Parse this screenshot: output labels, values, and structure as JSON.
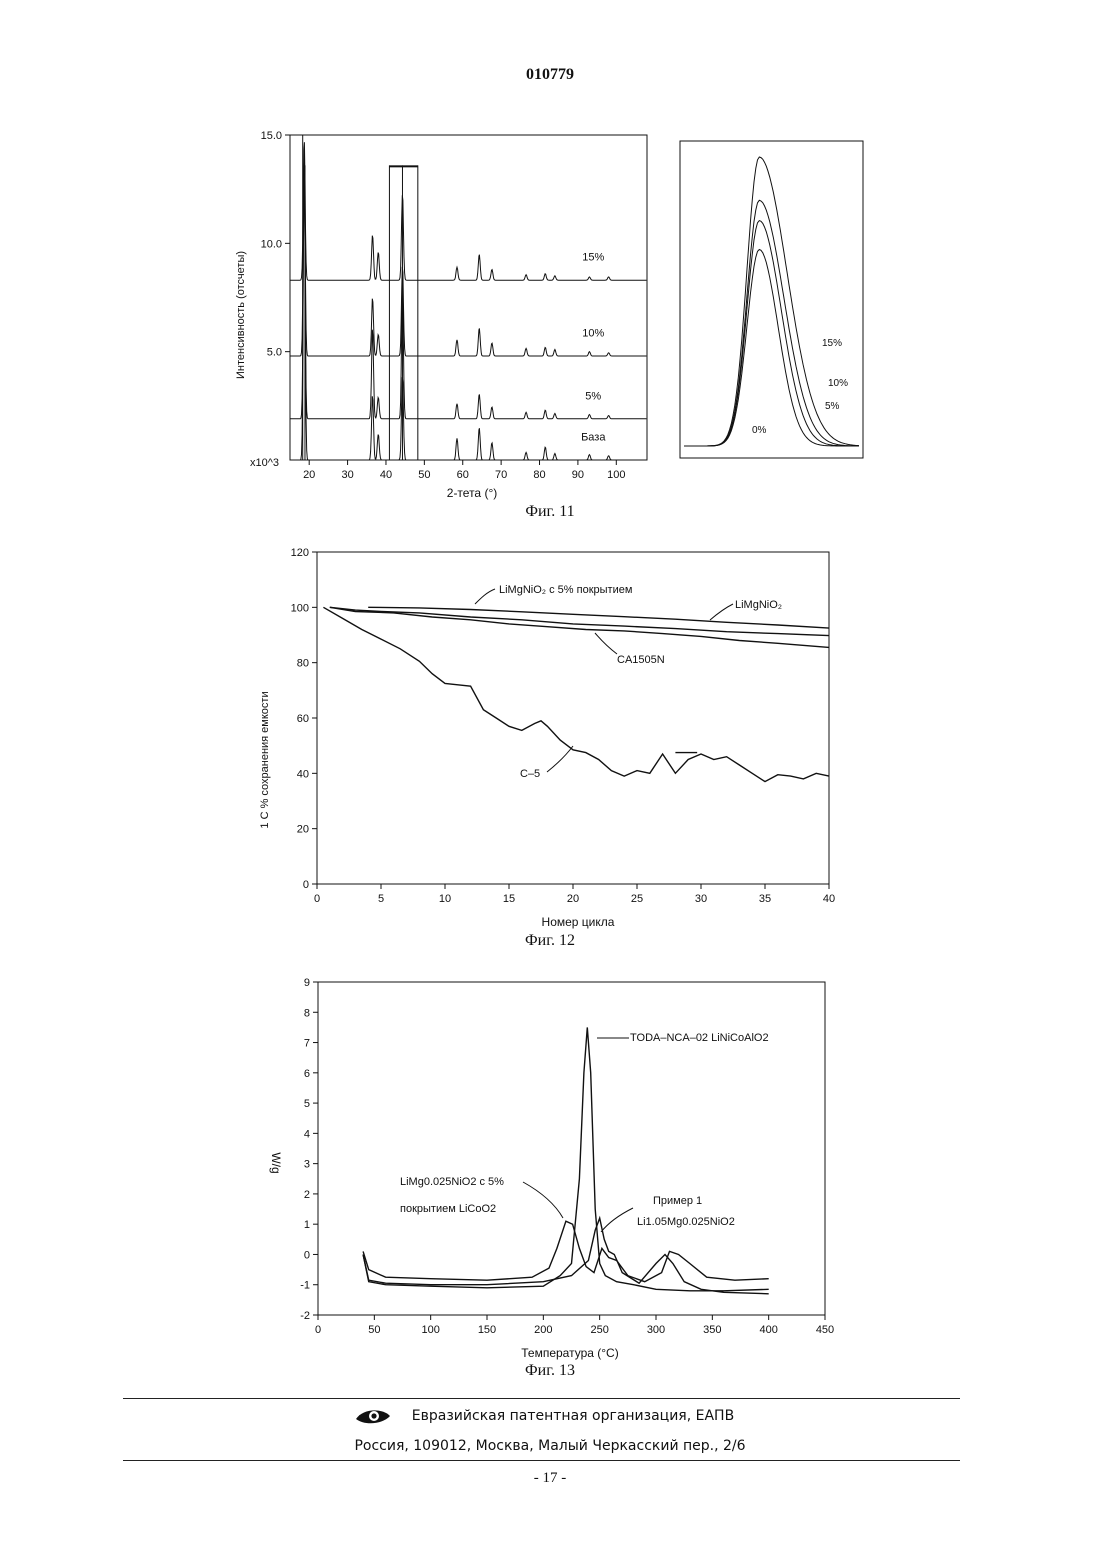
{
  "document": {
    "number": "010779",
    "page_number": "- 17 -"
  },
  "footer": {
    "org": "Евразийская патентная организация, ЕАПВ",
    "address": "Россия, 109012, Москва, Малый Черкасский пер., 2/6"
  },
  "figures": {
    "fig11": {
      "caption": "Фиг. 11",
      "xlabel": "2-тета (°)",
      "ylabel": "Интенсивность (отсчеты)",
      "y_multiplier": "x10^3",
      "series_labels": [
        "15%",
        "10%",
        "5%",
        "База"
      ],
      "inset_labels": [
        "15%",
        "10%",
        "5%",
        "0%"
      ]
    },
    "fig12": {
      "caption": "Фиг. 12",
      "xlabel": "Номер цикла",
      "ylabel": "1 С % сохранения емкости",
      "labels": {
        "coated": "LiMgNiO₂ с 5% покрытием",
        "limgnio2": "LiMgNiO₂",
        "ca1505n": "CA1505N",
        "c5": "C–5"
      }
    },
    "fig13": {
      "caption": "Фиг. 13",
      "xlabel": "Температура (°С)",
      "ylabel": "W/g",
      "labels": {
        "toda": "TODA–NCA–02 LiNiCoAlO2",
        "coated_line1": "LiMg0.025NiO2 с 5%",
        "coated_line2": "покрытием LiCoO2",
        "example_line1": "Пример 1",
        "example_line2": "Li1.05Mg0.025NiO2"
      }
    }
  },
  "chart_data": [
    {
      "type": "line",
      "title": "",
      "xlabel": "2-тета (°)",
      "ylabel": "Интенсивность (отсчеты)",
      "xlim": [
        15,
        108
      ],
      "ylim": [
        0,
        15
      ],
      "x_ticks": [
        20,
        30,
        40,
        50,
        60,
        70,
        80,
        90,
        100
      ],
      "y_ticks": [
        5.0,
        10.0,
        15.0
      ],
      "y_multiplier": "x10^3",
      "series": [
        {
          "name": "15%",
          "baseline": 8.3,
          "peaks": [
            [
              18.7,
              6.5
            ],
            [
              36.5,
              2.1
            ],
            [
              38.0,
              1.3
            ],
            [
              44.3,
              4.0
            ],
            [
              58.5,
              0.6
            ],
            [
              64.3,
              1.2
            ],
            [
              67.6,
              0.5
            ],
            [
              76.5,
              0.25
            ],
            [
              81.5,
              0.3
            ],
            [
              84.0,
              0.2
            ],
            [
              93.0,
              0.15
            ],
            [
              98.0,
              0.15
            ]
          ]
        },
        {
          "name": "10%",
          "baseline": 4.8,
          "peaks": [
            [
              18.7,
              9.5
            ],
            [
              36.5,
              2.7
            ],
            [
              38.0,
              1.0
            ],
            [
              44.3,
              4.2
            ],
            [
              58.5,
              0.75
            ],
            [
              64.3,
              1.3
            ],
            [
              67.6,
              0.6
            ],
            [
              76.5,
              0.35
            ],
            [
              81.5,
              0.4
            ],
            [
              84.0,
              0.3
            ],
            [
              93.0,
              0.2
            ],
            [
              98.0,
              0.15
            ]
          ]
        },
        {
          "name": "5%",
          "baseline": 1.9,
          "peaks": [
            [
              18.7,
              11.0
            ],
            [
              36.5,
              4.2
            ],
            [
              38.0,
              1.0
            ],
            [
              44.3,
              5.8
            ],
            [
              58.5,
              0.7
            ],
            [
              64.3,
              1.15
            ],
            [
              67.6,
              0.55
            ],
            [
              76.5,
              0.3
            ],
            [
              81.5,
              0.4
            ],
            [
              84.0,
              0.25
            ],
            [
              93.0,
              0.2
            ],
            [
              98.0,
              0.15
            ]
          ]
        },
        {
          "name": "База",
          "baseline": 0.0,
          "peaks": [
            [
              18.7,
              14.0
            ],
            [
              36.5,
              3.0
            ],
            [
              38.0,
              1.2
            ],
            [
              44.3,
              3.9
            ],
            [
              58.5,
              1.0
            ],
            [
              64.3,
              1.5
            ],
            [
              67.6,
              0.8
            ],
            [
              76.5,
              0.35
            ],
            [
              81.5,
              0.6
            ],
            [
              84.0,
              0.3
            ],
            [
              93.0,
              0.25
            ],
            [
              98.0,
              0.2
            ]
          ]
        }
      ],
      "inset": {
        "series": [
          {
            "name": "15%",
            "peak": 1.0
          },
          {
            "name": "10%",
            "peak": 0.85
          },
          {
            "name": "5%",
            "peak": 0.78
          },
          {
            "name": "0%",
            "peak": 0.68
          }
        ]
      }
    },
    {
      "type": "line",
      "title": "",
      "xlabel": "Номер цикла",
      "ylabel": "1 С % сохранения емкости",
      "xlim": [
        0,
        40
      ],
      "ylim": [
        0,
        120
      ],
      "x_ticks": [
        0,
        5,
        10,
        15,
        20,
        25,
        30,
        35,
        40
      ],
      "y_ticks": [
        0,
        20,
        40,
        60,
        80,
        100,
        120
      ],
      "series": [
        {
          "name": "LiMgNiO₂ с 5% покрытием",
          "x": [
            4,
            8,
            12,
            16,
            20,
            24,
            28,
            32,
            36,
            40
          ],
          "y": [
            100,
            99.8,
            99.2,
            98.4,
            97.5,
            96.6,
            95.7,
            94.6,
            93.6,
            92.5
          ]
        },
        {
          "name": "LiMgNiO₂",
          "x": [
            1,
            3,
            5,
            8,
            12,
            16,
            20,
            24,
            28,
            32,
            36,
            40
          ],
          "y": [
            100,
            99,
            98.5,
            98,
            96.5,
            95.5,
            94,
            93.2,
            92.3,
            91.2,
            90.5,
            89.8
          ]
        },
        {
          "name": "CA1505N",
          "x": [
            1,
            3,
            6,
            9,
            12,
            15,
            18,
            21,
            24,
            27,
            30,
            33,
            36,
            40
          ],
          "y": [
            100,
            98.5,
            98,
            96.5,
            95.5,
            94,
            93,
            92,
            91.5,
            90.5,
            89.5,
            88,
            87,
            85.5
          ]
        },
        {
          "name": "C–5",
          "x": [
            0.5,
            2,
            3.5,
            5,
            6.5,
            8,
            9,
            10,
            11,
            12,
            13,
            14,
            15,
            16,
            17,
            17.5,
            18,
            19,
            20,
            21,
            22,
            23,
            24,
            25,
            26,
            27,
            28,
            29,
            30,
            31,
            32,
            33,
            34,
            35,
            36,
            37,
            38,
            39,
            40
          ],
          "y": [
            100,
            96,
            92,
            88.5,
            85,
            80.5,
            76,
            72.5,
            72,
            71.5,
            63,
            60,
            57,
            55.5,
            58,
            59,
            57,
            52,
            48.5,
            47.5,
            45,
            41,
            39,
            41,
            40,
            47,
            40,
            45,
            47,
            45,
            46,
            43,
            40,
            37,
            39.5,
            39,
            38,
            40,
            39
          ]
        }
      ]
    },
    {
      "type": "line",
      "title": "",
      "xlabel": "Температура (°С)",
      "ylabel": "W/g",
      "xlim": [
        0,
        450
      ],
      "ylim": [
        -2,
        9
      ],
      "x_ticks": [
        0,
        50,
        100,
        150,
        200,
        250,
        300,
        350,
        400,
        450
      ],
      "y_ticks": [
        -2,
        -1,
        0,
        1,
        2,
        3,
        4,
        5,
        6,
        7,
        8,
        9
      ],
      "series": [
        {
          "name": "TODA–NCA–02 LiNiCoAlO2",
          "x": [
            40,
            45,
            60,
            100,
            150,
            200,
            215,
            225,
            232,
            236,
            239,
            242,
            246,
            250,
            255,
            265,
            280,
            300,
            330,
            360,
            400
          ],
          "y": [
            0.0,
            -0.9,
            -1.0,
            -1.05,
            -1.1,
            -1.05,
            -0.7,
            -0.3,
            2.5,
            6.0,
            7.5,
            6.0,
            1.5,
            -0.3,
            -0.7,
            -0.9,
            -1.0,
            -1.15,
            -1.2,
            -1.2,
            -1.15
          ]
        },
        {
          "name": "LiMg0.025NiO2 с 5% покрытием LiCoO2",
          "x": [
            40,
            45,
            60,
            100,
            150,
            190,
            205,
            212,
            220,
            226,
            232,
            238,
            245,
            252,
            258,
            265,
            275,
            290,
            305,
            312,
            320,
            330,
            345,
            370,
            400
          ],
          "y": [
            0.1,
            -0.5,
            -0.75,
            -0.8,
            -0.85,
            -0.75,
            -0.45,
            0.2,
            1.1,
            1.0,
            0.2,
            -0.4,
            -0.6,
            0.2,
            -0.1,
            -0.2,
            -0.7,
            -0.9,
            -0.6,
            0.1,
            0.0,
            -0.3,
            -0.75,
            -0.85,
            -0.8
          ]
        },
        {
          "name": "Пример 1 Li1.05Mg0.025NiO2",
          "x": [
            40,
            45,
            60,
            100,
            150,
            200,
            225,
            240,
            246,
            250,
            254,
            258,
            263,
            270,
            285,
            300,
            308,
            315,
            325,
            340,
            360,
            400
          ],
          "y": [
            0.0,
            -0.85,
            -0.95,
            -1.0,
            -1.0,
            -0.9,
            -0.7,
            -0.2,
            0.8,
            1.2,
            0.5,
            0.1,
            0.0,
            -0.6,
            -0.95,
            -0.3,
            0.0,
            -0.3,
            -0.9,
            -1.15,
            -1.25,
            -1.3
          ]
        }
      ]
    }
  ]
}
